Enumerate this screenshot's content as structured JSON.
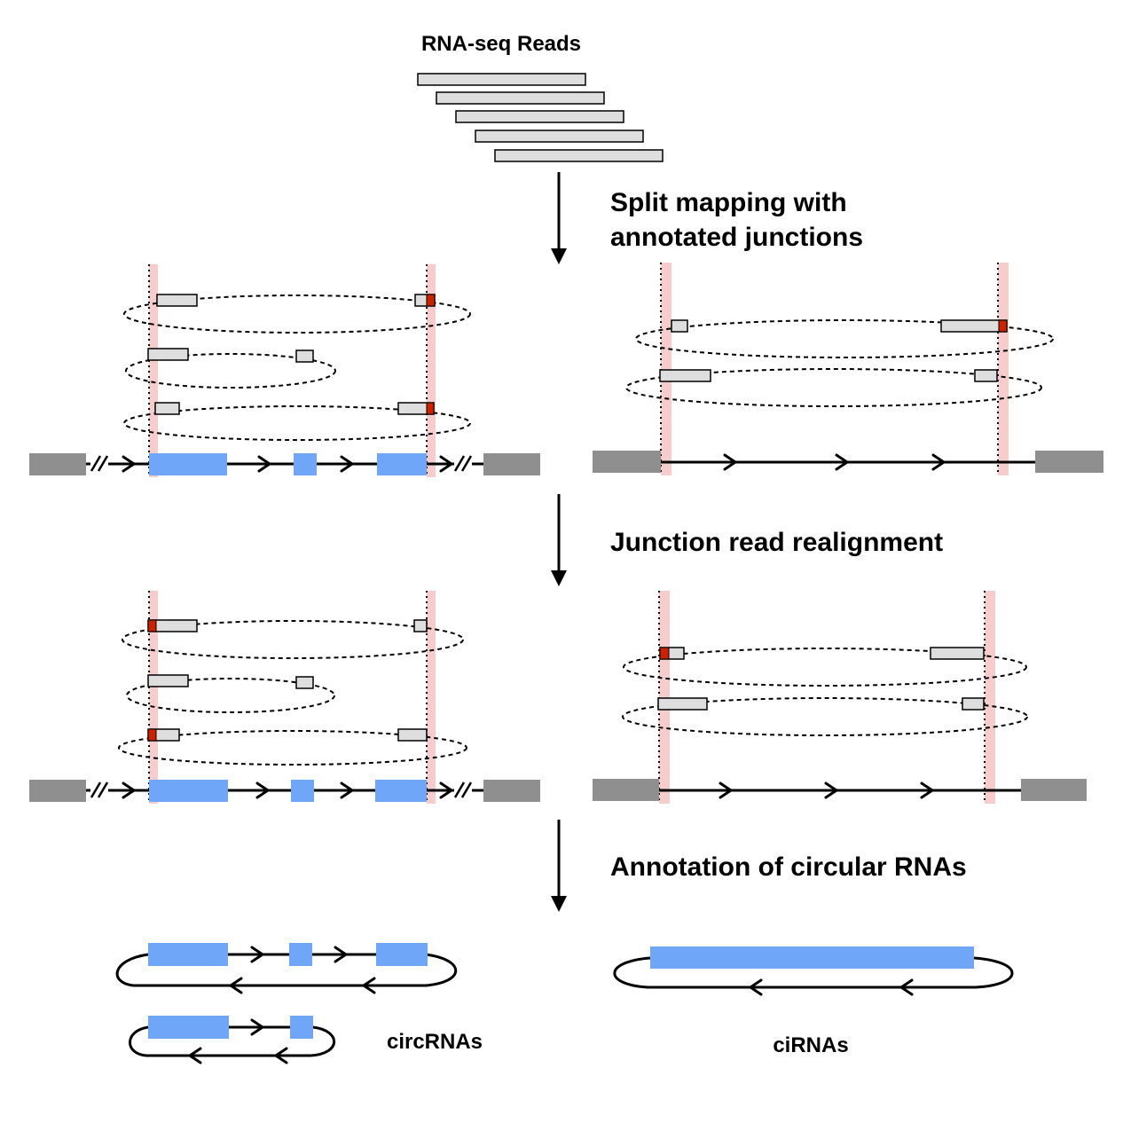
{
  "labels": {
    "top": "RNA-seq Reads",
    "step1_line1": "Split mapping with",
    "step1_line2": "annotated junctions",
    "step2": "Junction read realignment",
    "step3": "Annotation of circular RNAs",
    "circ": "circRNAs",
    "ci": "ciRNAs"
  },
  "colors": {
    "exon": "#6fa6f7",
    "flank": "#8f8f8f",
    "read": "#dedede",
    "junction_mark": "#cc2200",
    "junction_band": "#f7cccc"
  }
}
